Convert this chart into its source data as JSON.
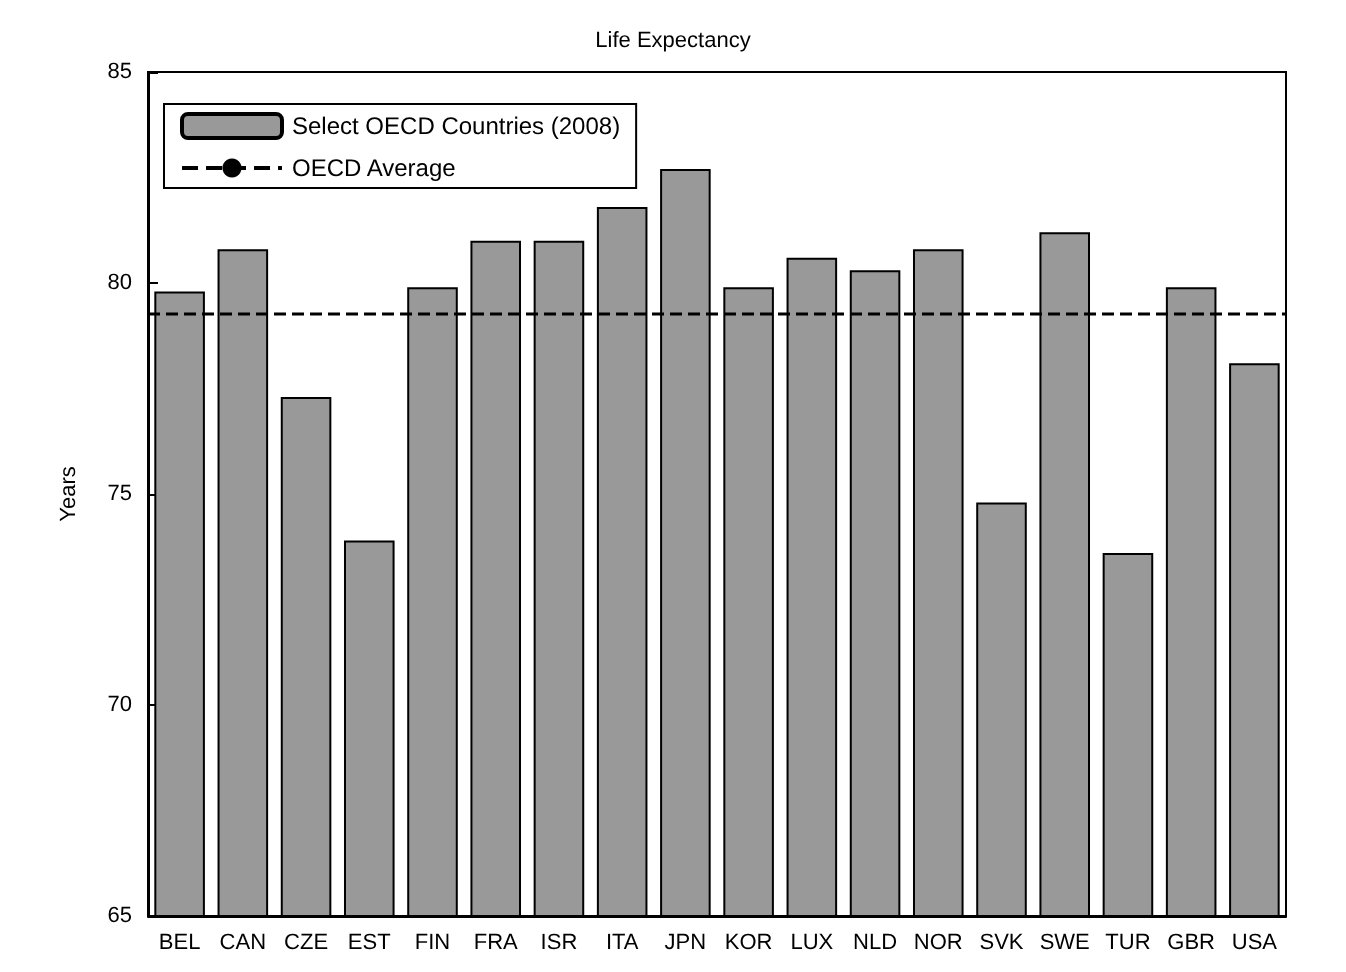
{
  "chart_data": {
    "type": "bar",
    "title": "Life Expectancy",
    "ylabel": "Years",
    "categories": [
      "BEL",
      "CAN",
      "CZE",
      "EST",
      "FIN",
      "FRA",
      "ISR",
      "ITA",
      "JPN",
      "KOR",
      "LUX",
      "NLD",
      "NOR",
      "SVK",
      "SWE",
      "TUR",
      "GBR",
      "USA"
    ],
    "series": [
      {
        "name": "Select OECD Countries (2008)",
        "color": "#999999",
        "values": [
          79.8,
          80.8,
          77.3,
          73.9,
          79.9,
          81.0,
          81.0,
          81.8,
          82.7,
          79.9,
          80.6,
          80.3,
          80.8,
          74.8,
          81.2,
          73.6,
          79.9,
          78.1
        ]
      }
    ],
    "ylim": [
      65,
      85
    ],
    "yticks": [
      65,
      70,
      75,
      80,
      85
    ],
    "grid": false,
    "legend": "top left",
    "ref_lines": [
      {
        "axis": "y",
        "value": 79.3,
        "label": "OECD Average",
        "color": "#000000",
        "line_style": "dashed"
      }
    ]
  }
}
